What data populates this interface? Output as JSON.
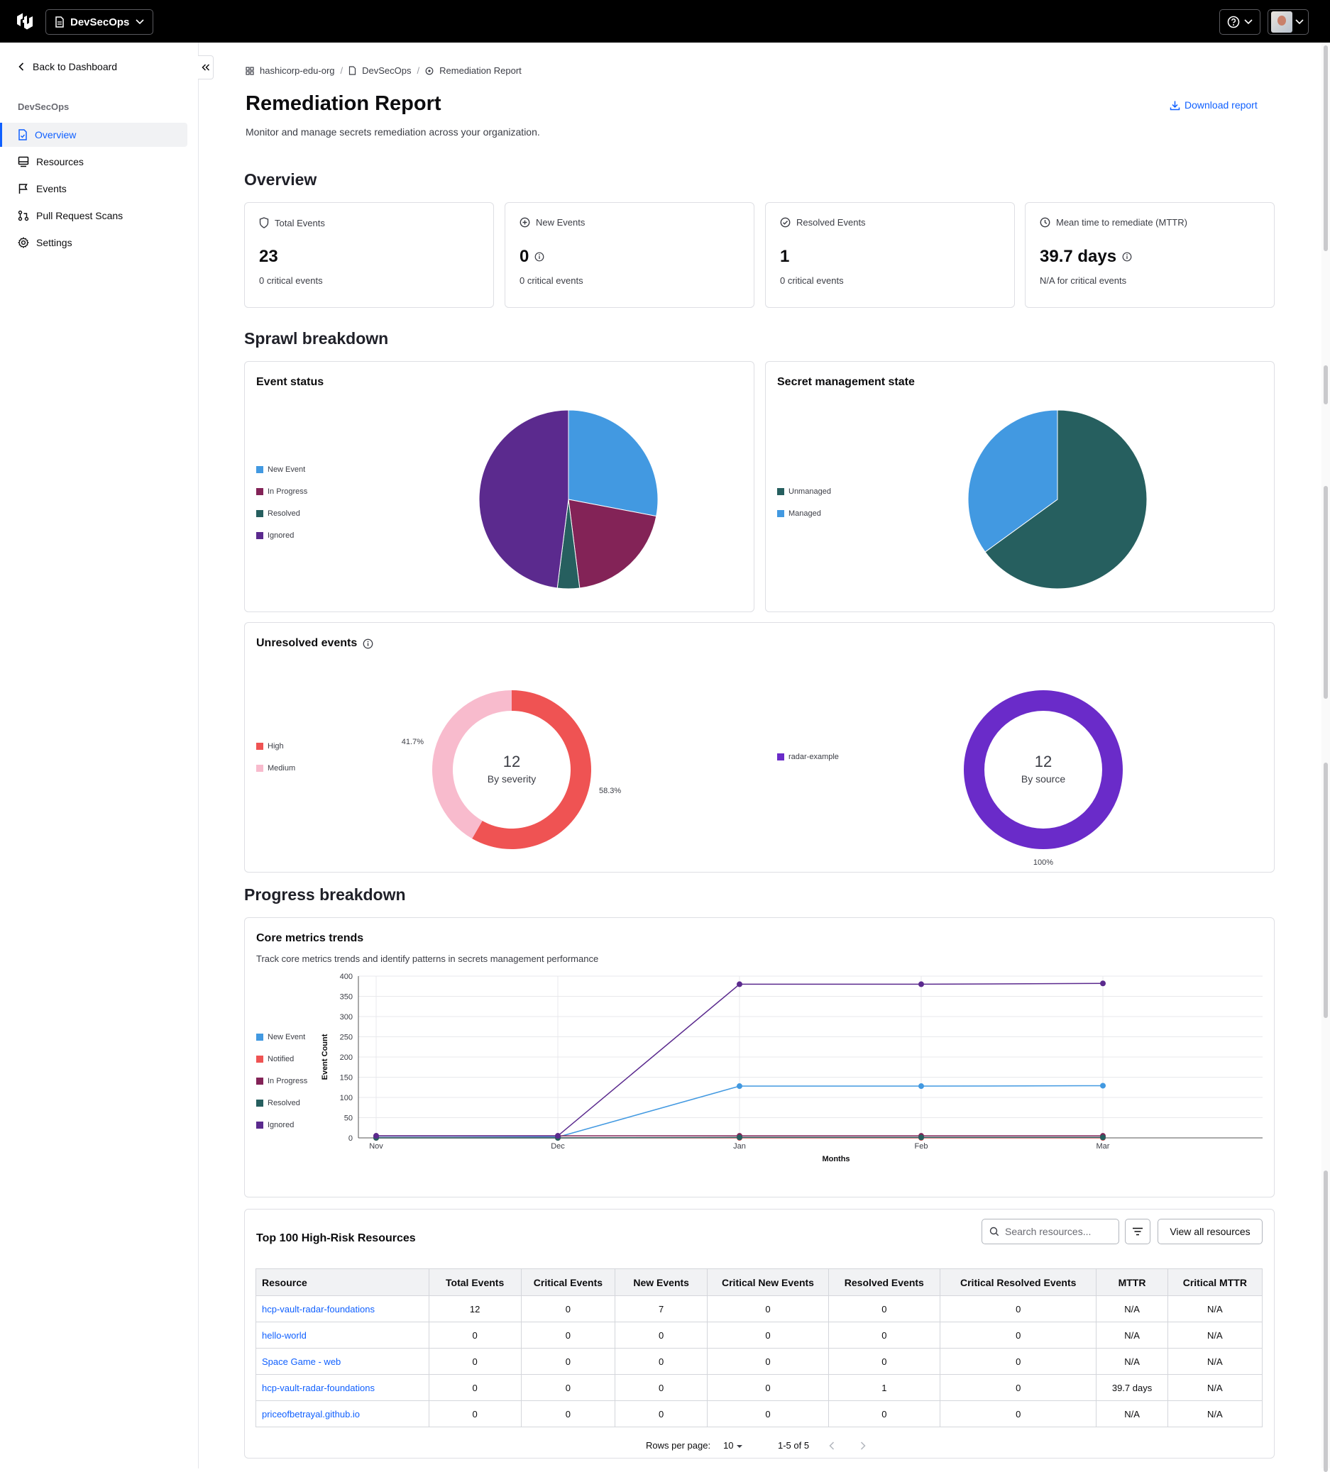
{
  "topbar": {
    "org": "DevSecOps"
  },
  "sidebar": {
    "back": "Back to Dashboard",
    "section": "DevSecOps",
    "items": [
      {
        "label": "Overview",
        "icon": "document-icon"
      },
      {
        "label": "Resources",
        "icon": "server-icon"
      },
      {
        "label": "Events",
        "icon": "flag-icon"
      },
      {
        "label": "Pull Request Scans",
        "icon": "git-pull-request-icon"
      },
      {
        "label": "Settings",
        "icon": "gear-icon"
      }
    ]
  },
  "breadcrumb": [
    "hashicorp-edu-org",
    "DevSecOps",
    "Remediation Report"
  ],
  "page": {
    "title": "Remediation Report",
    "subtitle": "Monitor and manage secrets remediation across your organization.",
    "download": "Download report"
  },
  "sections": {
    "overview": "Overview",
    "sprawl": "Sprawl breakdown",
    "progress": "Progress breakdown"
  },
  "stats": [
    {
      "label": "Total Events",
      "value": "23",
      "sub": "0 critical events",
      "icon": "shield-icon"
    },
    {
      "label": "New Events",
      "value": "0",
      "sub": "0 critical events",
      "icon": "plus-circle-icon"
    },
    {
      "label": "Resolved Events",
      "value": "1",
      "sub": "0 critical events",
      "icon": "check-circle-icon"
    },
    {
      "label": "Mean time to remediate (MTTR)",
      "value": "39.7 days",
      "sub": "N/A for critical events",
      "icon": "clock-icon"
    }
  ],
  "event_status": {
    "title": "Event status",
    "legend": [
      "New Event",
      "In Progress",
      "Resolved",
      "Ignored"
    ],
    "colors": [
      "#4299e1",
      "#832357",
      "#265f5f",
      "#5b2a8e"
    ]
  },
  "secret_state": {
    "title": "Secret management state",
    "legend": [
      "Unmanaged",
      "Managed"
    ],
    "colors": [
      "#265f5f",
      "#4299e1"
    ]
  },
  "unresolved": {
    "title": "Unresolved events",
    "severity": {
      "legend": [
        "High",
        "Medium"
      ],
      "colors": [
        "#ef5353",
        "#f8bbcd"
      ],
      "total": "12",
      "label": "By severity",
      "pct_high": "58.3%",
      "pct_medium": "41.7%"
    },
    "source": {
      "legend": [
        "radar-example"
      ],
      "colors": [
        "#6a2bc9"
      ],
      "total": "12",
      "label": "By source",
      "pct": "100%"
    }
  },
  "trends": {
    "title": "Core metrics trends",
    "desc": "Track core metrics trends and identify patterns in secrets management performance",
    "legend": [
      "New Event",
      "Notified",
      "In Progress",
      "Resolved",
      "Ignored"
    ],
    "colors": [
      "#4299e1",
      "#ef5353",
      "#832357",
      "#265f5f",
      "#5b2a8e"
    ],
    "xlabel": "Months",
    "ylabel": "Event Count",
    "yticks": [
      "400",
      "350",
      "300",
      "250",
      "200",
      "150",
      "100",
      "50",
      "0"
    ]
  },
  "table": {
    "title": "Top 100 High-Risk Resources",
    "search_placeholder": "Search resources...",
    "view_all": "View all resources",
    "columns": [
      "Resource",
      "Total Events",
      "Critical Events",
      "New Events",
      "Critical New Events",
      "Resolved Events",
      "Critical Resolved Events",
      "MTTR",
      "Critical MTTR"
    ],
    "rows": [
      [
        "hcp-vault-radar-foundations",
        "12",
        "0",
        "7",
        "0",
        "0",
        "0",
        "N/A",
        "N/A"
      ],
      [
        "hello-world",
        "0",
        "0",
        "0",
        "0",
        "0",
        "0",
        "N/A",
        "N/A"
      ],
      [
        "Space Game - web",
        "0",
        "0",
        "0",
        "0",
        "0",
        "0",
        "N/A",
        "N/A"
      ],
      [
        "hcp-vault-radar-foundations",
        "0",
        "0",
        "0",
        "0",
        "1",
        "0",
        "39.7 days",
        "N/A"
      ],
      [
        "priceofbetrayal.github.io",
        "0",
        "0",
        "0",
        "0",
        "0",
        "0",
        "N/A",
        "N/A"
      ]
    ],
    "rows_per_page_label": "Rows per page:",
    "rows_per_page": "10",
    "range": "1-5 of 5"
  },
  "chart_data": [
    {
      "type": "pie",
      "title": "Event status",
      "categories": [
        "New Event",
        "In Progress",
        "Resolved",
        "Ignored"
      ],
      "values": [
        28,
        20,
        4,
        48
      ]
    },
    {
      "type": "pie",
      "title": "Secret management state",
      "categories": [
        "Unmanaged",
        "Managed"
      ],
      "values": [
        65,
        35
      ]
    },
    {
      "type": "pie",
      "title": "By severity",
      "categories": [
        "High",
        "Medium"
      ],
      "values": [
        58.3,
        41.7
      ]
    },
    {
      "type": "pie",
      "title": "By source",
      "categories": [
        "radar-example"
      ],
      "values": [
        100
      ]
    },
    {
      "type": "line",
      "title": "Core metrics trends",
      "x": [
        "Nov",
        "Dec",
        "Jan",
        "Feb",
        "Mar"
      ],
      "xlabel": "Months",
      "ylabel": "Event Count",
      "ylim": [
        0,
        400
      ],
      "series": [
        {
          "name": "New Event",
          "values": [
            1,
            2,
            128,
            128,
            129
          ]
        },
        {
          "name": "Notified",
          "values": [
            0,
            0,
            0,
            0,
            0
          ]
        },
        {
          "name": "In Progress",
          "values": [
            5,
            5,
            5,
            5,
            5
          ]
        },
        {
          "name": "Resolved",
          "values": [
            0,
            0,
            1,
            1,
            1
          ]
        },
        {
          "name": "Ignored",
          "values": [
            5,
            5,
            380,
            380,
            382
          ]
        }
      ]
    }
  ]
}
